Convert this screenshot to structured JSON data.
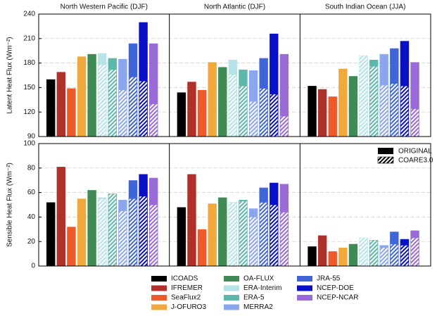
{
  "chart_data": {
    "type": "bar",
    "categories": [
      "North Western Pacific (DJF)",
      "North Atlantic (DJF)",
      "South Indian Ocean (JJA)"
    ],
    "series": [
      {
        "name": "ICOADS",
        "color": "#000000"
      },
      {
        "name": "IFREMER",
        "color": "#b0312a"
      },
      {
        "name": "SeaFlux2",
        "color": "#ee5a2a"
      },
      {
        "name": "J-OFURO3",
        "color": "#f2a83a"
      },
      {
        "name": "OA-FLUX",
        "color": "#3f8a55"
      },
      {
        "name": "ERA-Interim",
        "color": "#b5e3e8"
      },
      {
        "name": "ERA-5",
        "color": "#5cb8aa"
      },
      {
        "name": "MERRA2",
        "color": "#8aa6ee"
      },
      {
        "name": "JRA-55",
        "color": "#3f66d8"
      },
      {
        "name": "NCEP-DOE",
        "color": "#0a10c8"
      },
      {
        "name": "NCEP-NCAR",
        "color": "#9a6ad8"
      }
    ],
    "style_legend": {
      "original": "ORIGINAL",
      "coare": "COARE3.0"
    },
    "grid": true,
    "panels": [
      {
        "y_label": "Latent Heat Flux (Wm⁻²)",
        "ylim": [
          90,
          240
        ],
        "yticks": [
          90,
          120,
          150,
          180,
          210,
          240
        ],
        "series": [
          {
            "values": [
              160,
              144,
              152
            ]
          },
          {
            "values": [
              169,
              157,
              148
            ]
          },
          {
            "values": [
              149,
              147,
              139
            ]
          },
          {
            "values": [
              188,
              181,
              173
            ]
          },
          {
            "values": [
              191,
              175,
              164
            ]
          },
          {
            "values": [
              192,
              184,
              188
            ],
            "coare_values": [
              178,
              166,
              189
            ]
          },
          {
            "values": [
              186,
              172,
              184
            ],
            "coare_values": [
              172,
              152,
              176
            ]
          },
          {
            "values": [
              185,
              171,
              191
            ],
            "coare_values": [
              147,
              133,
              153
            ]
          },
          {
            "values": [
              204,
              186,
              198
            ],
            "coare_values": [
              163,
              149,
              155
            ]
          },
          {
            "values": [
              230,
              216,
              207
            ],
            "coare_values": [
              158,
              142,
              152
            ]
          },
          {
            "values": [
              204,
              191,
              181
            ],
            "coare_values": [
              130,
              115,
              124
            ]
          }
        ]
      },
      {
        "y_label": "Sensible Heat Flux (Wm⁻²)",
        "ylim": [
          0,
          100
        ],
        "yticks": [
          0,
          20,
          40,
          60,
          80,
          100
        ],
        "series": [
          {
            "values": [
              52,
              48,
              16
            ]
          },
          {
            "values": [
              81,
              75,
              25
            ]
          },
          {
            "values": [
              32,
              30,
              12
            ]
          },
          {
            "values": [
              55,
              51,
              15
            ]
          },
          {
            "values": [
              62,
              56,
              18
            ]
          },
          {
            "values": [
              56,
              52,
              22
            ],
            "coare_values": [
              55,
              52,
              23
            ]
          },
          {
            "values": [
              59,
              54,
              21
            ],
            "coare_values": [
              59,
              53,
              21
            ]
          },
          {
            "values": [
              54,
              47,
              17
            ],
            "coare_values": [
              45,
              40,
              15
            ]
          },
          {
            "values": [
              70,
              64,
              28
            ],
            "coare_values": [
              55,
              52,
              18
            ]
          },
          {
            "values": [
              75,
              68,
              22
            ],
            "coare_values": [
              57,
              50,
              17
            ]
          },
          {
            "values": [
              72,
              67,
              29
            ],
            "coare_values": [
              50,
              44,
              23
            ]
          }
        ]
      }
    ]
  }
}
